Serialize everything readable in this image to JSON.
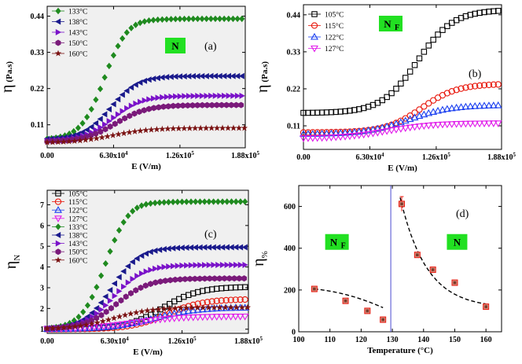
{
  "colors": {
    "green": "#1f8a1f",
    "navy": "#1a1a8c",
    "purple": "#7a12c9",
    "violet": "#7a1a7a",
    "darkred": "#7a1212",
    "black": "#000000",
    "red": "#e8170c",
    "blue": "#1a3ff0",
    "magenta": "#e01aea",
    "badge": "#22e022",
    "vline": "#4a4ad0",
    "panelbg": "#f0f0f0"
  },
  "chart_data": [
    {
      "id": "a",
      "type": "scatter",
      "panel_label": "(a)",
      "badge": "N",
      "badge_sub": "",
      "ylabel": "η",
      "ylabel_unit": "(Pa.s)",
      "xlabel": "E (V/m)",
      "xlim": [
        0,
        188000
      ],
      "ylim": [
        0.04,
        0.47
      ],
      "xtick_labels": [
        "0.00",
        "6.30x10",
        "1.26x10",
        "1.88x10"
      ],
      "xtick_exps": [
        "",
        "4",
        "5",
        "5"
      ],
      "xticks": [
        0,
        63000,
        126000,
        188000
      ],
      "ytick_labels": [
        "0.11",
        "0.22",
        "0.33",
        "0.44"
      ],
      "yticks": [
        0.11,
        0.22,
        0.33,
        0.44
      ],
      "legend": [
        {
          "label": "133°C",
          "marker": "diamond",
          "color": "green"
        },
        {
          "label": "138°C",
          "marker": "tri-left",
          "color": "navy"
        },
        {
          "label": "143°C",
          "marker": "tri-right",
          "color": "purple"
        },
        {
          "label": "150°C",
          "marker": "hexagon",
          "color": "violet"
        },
        {
          "label": "160°C",
          "marker": "star",
          "color": "darkred"
        }
      ],
      "series": [
        {
          "name": "133°C",
          "color": "green",
          "marker": "diamond",
          "x0": 0.065,
          "x1": 0.432,
          "mid": 54000,
          "w": 11000,
          "xmax": 188000,
          "step": 4200,
          "overshoot": 0.004
        },
        {
          "name": "138°C",
          "color": "navy",
          "marker": "tri-left",
          "x0": 0.065,
          "x1": 0.258,
          "mid": 60000,
          "w": 13000,
          "xmax": 188000,
          "step": 4200
        },
        {
          "name": "143°C",
          "color": "purple",
          "marker": "tri-right",
          "x0": 0.06,
          "x1": 0.198,
          "mid": 62000,
          "w": 14000,
          "xmax": 188000,
          "step": 4200
        },
        {
          "name": "150°C",
          "color": "violet",
          "marker": "hexagon",
          "x0": 0.058,
          "x1": 0.17,
          "mid": 65000,
          "w": 15000,
          "xmax": 188000,
          "step": 4600
        },
        {
          "name": "160°C",
          "color": "darkred",
          "marker": "star",
          "x0": 0.055,
          "x1": 0.1,
          "mid": 62000,
          "w": 18000,
          "xmax": 188000,
          "step": 5200
        }
      ]
    },
    {
      "id": "b",
      "type": "scatter",
      "panel_label": "(b)",
      "badge": "N",
      "badge_sub": "F",
      "ylabel": "η",
      "ylabel_unit": "(Pa.s)",
      "xlabel": "E (V/m)",
      "xlim": [
        0,
        188000
      ],
      "ylim": [
        0.04,
        0.47
      ],
      "xtick_labels": [
        "0.00",
        "6.30x10",
        "1.26x10",
        "1.88x10"
      ],
      "xtick_exps": [
        "",
        "4",
        "5",
        "5"
      ],
      "xticks": [
        0,
        63000,
        126000,
        188000
      ],
      "ytick_labels": [
        "0.11",
        "0.22",
        "0.33",
        "0.44"
      ],
      "yticks": [
        0.11,
        0.22,
        0.33,
        0.44
      ],
      "legend": [
        {
          "label": "105°C",
          "marker": "square-open",
          "color": "black"
        },
        {
          "label": "115°C",
          "marker": "circle-open",
          "color": "red"
        },
        {
          "label": "122°C",
          "marker": "tri-up-open",
          "color": "blue"
        },
        {
          "label": "127°C",
          "marker": "tri-down-open",
          "color": "magenta"
        }
      ],
      "series": [
        {
          "name": "105°C",
          "color": "black",
          "marker": "square-open",
          "x0": 0.148,
          "x1": 0.455,
          "mid": 108000,
          "w": 17000,
          "xmax": 188000,
          "step": 4400
        },
        {
          "name": "115°C",
          "color": "red",
          "marker": "circle-open",
          "x0": 0.09,
          "x1": 0.235,
          "mid": 112000,
          "w": 17000,
          "xmax": 188000,
          "step": 4400
        },
        {
          "name": "122°C",
          "color": "blue",
          "marker": "tri-up-open",
          "x0": 0.085,
          "x1": 0.172,
          "mid": 100000,
          "w": 20000,
          "xmax": 188000,
          "step": 4400
        },
        {
          "name": "127°C",
          "color": "magenta",
          "marker": "tri-down-open",
          "x0": 0.072,
          "x1": 0.118,
          "mid": 80000,
          "w": 22000,
          "xmax": 188000,
          "step": 4400
        }
      ]
    },
    {
      "id": "c",
      "type": "scatter",
      "panel_label": "(c)",
      "ylabel": "η",
      "ylabel_sub": "N",
      "xlabel": "E (V/m)",
      "xlim": [
        0,
        188000
      ],
      "ylim": [
        0.8,
        7.7
      ],
      "xtick_labels": [
        "0.00",
        "6.30x10",
        "1.26x10",
        "1.88x10"
      ],
      "xtick_exps": [
        "",
        "4",
        "5",
        "5"
      ],
      "xticks": [
        0,
        63000,
        126000,
        188000
      ],
      "ytick_labels": [
        "1",
        "2",
        "3",
        "4",
        "5",
        "6",
        "7"
      ],
      "yticks": [
        1,
        2,
        3,
        4,
        5,
        6,
        7
      ],
      "legend": [
        {
          "label": "105°C",
          "marker": "square-open",
          "color": "black"
        },
        {
          "label": "115°C",
          "marker": "circle-open",
          "color": "red"
        },
        {
          "label": "122°C",
          "marker": "tri-up-open",
          "color": "blue"
        },
        {
          "label": "127°C",
          "marker": "tri-down-open",
          "color": "magenta"
        },
        {
          "label": "133°C",
          "marker": "diamond",
          "color": "green"
        },
        {
          "label": "138°C",
          "marker": "tri-left",
          "color": "navy"
        },
        {
          "label": "143°C",
          "marker": "tri-right",
          "color": "purple"
        },
        {
          "label": "150°C",
          "marker": "hexagon",
          "color": "violet"
        },
        {
          "label": "160°C",
          "marker": "star",
          "color": "darkred"
        }
      ],
      "series": [
        {
          "name": "105°C",
          "color": "black",
          "marker": "square-open",
          "x0": 1.0,
          "x1": 3.05,
          "mid": 108000,
          "w": 17000,
          "xmax": 188000,
          "step": 4400
        },
        {
          "name": "115°C",
          "color": "red",
          "marker": "circle-open",
          "x0": 1.0,
          "x1": 2.45,
          "mid": 112000,
          "w": 17000,
          "xmax": 188000,
          "step": 4400
        },
        {
          "name": "122°C",
          "color": "blue",
          "marker": "tri-up-open",
          "x0": 1.0,
          "x1": 2.05,
          "mid": 100000,
          "w": 20000,
          "xmax": 188000,
          "step": 4400
        },
        {
          "name": "127°C",
          "color": "magenta",
          "marker": "tri-down-open",
          "x0": 1.0,
          "x1": 1.62,
          "mid": 80000,
          "w": 22000,
          "xmax": 188000,
          "step": 4400
        },
        {
          "name": "133°C",
          "color": "green",
          "marker": "diamond",
          "x0": 1.0,
          "x1": 7.15,
          "mid": 54000,
          "w": 11000,
          "xmax": 188000,
          "step": 4200,
          "overshoot": 0.08
        },
        {
          "name": "138°C",
          "color": "navy",
          "marker": "tri-left",
          "x0": 1.0,
          "x1": 4.95,
          "mid": 60000,
          "w": 13000,
          "xmax": 188000,
          "step": 4200
        },
        {
          "name": "143°C",
          "color": "purple",
          "marker": "tri-right",
          "x0": 1.0,
          "x1": 4.1,
          "mid": 62000,
          "w": 14000,
          "xmax": 188000,
          "step": 4200
        },
        {
          "name": "150°C",
          "color": "violet",
          "marker": "hexagon",
          "x0": 1.0,
          "x1": 3.45,
          "mid": 65000,
          "w": 15000,
          "xmax": 188000,
          "step": 4600
        },
        {
          "name": "160°C",
          "color": "darkred",
          "marker": "star",
          "x0": 1.0,
          "x1": 2.05,
          "mid": 62000,
          "w": 18000,
          "xmax": 188000,
          "step": 5200
        }
      ]
    },
    {
      "id": "d",
      "type": "scatter",
      "panel_label": "(d)",
      "ylabel": "η",
      "ylabel_sub": "%",
      "xlabel": "Temperature (°C)",
      "xlim": [
        100,
        165
      ],
      "ylim": [
        0,
        700
      ],
      "xtick_labels": [
        "100",
        "110",
        "120",
        "130",
        "140",
        "150",
        "160"
      ],
      "xticks": [
        100,
        110,
        120,
        130,
        140,
        150,
        160
      ],
      "ytick_labels": [
        "0",
        "200",
        "400",
        "600"
      ],
      "yticks": [
        0,
        200,
        400,
        600
      ],
      "phase_boundary_x": 129.5,
      "phase_labels": [
        {
          "badge": "N",
          "sub": "F",
          "x": 112,
          "y": 430
        },
        {
          "badge": "N",
          "sub": "",
          "x": 151,
          "y": 430
        }
      ],
      "points": [
        {
          "x": 105,
          "y": 205
        },
        {
          "x": 115,
          "y": 148
        },
        {
          "x": 122,
          "y": 100
        },
        {
          "x": 127,
          "y": 58
        },
        {
          "x": 133,
          "y": 612,
          "err": 35
        },
        {
          "x": 138,
          "y": 368
        },
        {
          "x": 143,
          "y": 297
        },
        {
          "x": 150,
          "y": 235
        },
        {
          "x": 160,
          "y": 120
        }
      ],
      "fit_left": {
        "from": 105,
        "to": 127
      },
      "fit_right": {
        "from": 132.5,
        "to": 160
      }
    }
  ]
}
